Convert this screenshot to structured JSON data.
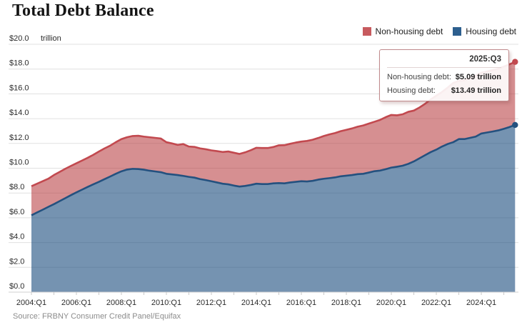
{
  "title": "Total Debt Balance",
  "unit_label": "trillion",
  "legend": [
    {
      "label": "Non-housing debt",
      "color": "#c75a5e"
    },
    {
      "label": "Housing debt",
      "color": "#2d5f8e"
    }
  ],
  "tooltip": {
    "period": "2025:Q3",
    "rows": [
      {
        "label": "Non-housing debt:",
        "value": "$5.09 trillion"
      },
      {
        "label": "Housing debt:",
        "value": "$13.49 trillion"
      }
    ]
  },
  "source": "Source: FRBNY Consumer Credit Panel/Equifax",
  "colors": {
    "housing_line": "#24517f",
    "housing_fill": "rgba(32,80,129,0.62)",
    "non_housing_line": "#c2494f",
    "non_housing_fill": "rgba(185,62,66,0.58)",
    "gridline": "#e0e0e0",
    "axis_text": "#2b2b2b"
  },
  "chart_data": {
    "type": "area",
    "stacked": true,
    "title": "Total Debt Balance",
    "ylabel": "trillion",
    "ylim": [
      0,
      20
    ],
    "y_ticks": [
      0,
      2,
      4,
      6,
      8,
      10,
      12,
      14,
      16,
      18,
      20
    ],
    "grid": true,
    "legend_position": "top-right",
    "frequency": "quarterly",
    "x_start": "2004:Q1",
    "x_end": "2025:Q3",
    "x_tick_labels": [
      "2004:Q1",
      "2006:Q1",
      "2008:Q1",
      "2010:Q1",
      "2012:Q1",
      "2014:Q1",
      "2016:Q1",
      "2018:Q1",
      "2020:Q1",
      "2022:Q1",
      "2024:Q1"
    ],
    "highlight_point": {
      "x": "2025:Q3",
      "housing": 13.49,
      "non_housing": 5.09
    },
    "series": [
      {
        "name": "Housing debt",
        "values": [
          6.2,
          6.43,
          6.65,
          6.88,
          7.1,
          7.34,
          7.58,
          7.82,
          8.05,
          8.27,
          8.49,
          8.7,
          8.9,
          9.12,
          9.33,
          9.55,
          9.75,
          9.89,
          9.95,
          9.93,
          9.88,
          9.8,
          9.74,
          9.68,
          9.55,
          9.5,
          9.45,
          9.38,
          9.3,
          9.24,
          9.12,
          9.04,
          8.95,
          8.85,
          8.75,
          8.7,
          8.6,
          8.52,
          8.57,
          8.65,
          8.75,
          8.72,
          8.72,
          8.78,
          8.8,
          8.78,
          8.85,
          8.9,
          8.95,
          8.93,
          8.98,
          9.08,
          9.15,
          9.2,
          9.26,
          9.35,
          9.4,
          9.45,
          9.52,
          9.55,
          9.65,
          9.76,
          9.81,
          9.92,
          10.05,
          10.12,
          10.2,
          10.35,
          10.55,
          10.8,
          11.05,
          11.3,
          11.5,
          11.75,
          11.95,
          12.1,
          12.35,
          12.35,
          12.45,
          12.55,
          12.8,
          12.88,
          12.96,
          13.05,
          13.18,
          13.32,
          13.49
        ]
      },
      {
        "name": "Non-housing debt",
        "values": [
          2.35,
          2.32,
          2.3,
          2.27,
          2.35,
          2.36,
          2.37,
          2.36,
          2.35,
          2.35,
          2.35,
          2.38,
          2.45,
          2.48,
          2.49,
          2.55,
          2.6,
          2.61,
          2.65,
          2.69,
          2.67,
          2.7,
          2.71,
          2.72,
          2.55,
          2.5,
          2.43,
          2.57,
          2.45,
          2.48,
          2.48,
          2.49,
          2.49,
          2.53,
          2.56,
          2.65,
          2.65,
          2.63,
          2.71,
          2.8,
          2.9,
          2.91,
          2.91,
          2.93,
          3.05,
          3.08,
          3.12,
          3.17,
          3.2,
          3.27,
          3.32,
          3.36,
          3.45,
          3.53,
          3.58,
          3.64,
          3.7,
          3.76,
          3.83,
          3.9,
          3.95,
          3.99,
          4.09,
          4.2,
          4.25,
          4.15,
          4.15,
          4.2,
          4.1,
          4.1,
          4.15,
          4.25,
          4.35,
          4.4,
          4.55,
          4.78,
          4.7,
          4.75,
          4.83,
          4.93,
          4.9,
          4.92,
          4.96,
          4.97,
          5.02,
          5.06,
          5.09
        ]
      }
    ]
  }
}
